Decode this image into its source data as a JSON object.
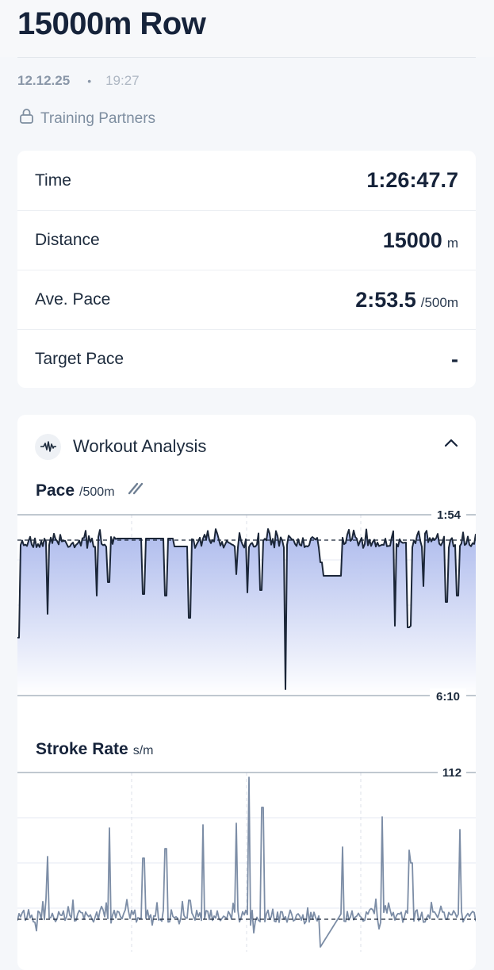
{
  "header": {
    "title": "15000m Row"
  },
  "meta": {
    "date": "12.12.25",
    "separator": "•",
    "time": "19:27"
  },
  "visibility": {
    "label": "Training Partners",
    "icon": "lock-icon"
  },
  "stats": [
    {
      "label": "Time",
      "value": "1:26:47.7",
      "unit": ""
    },
    {
      "label": "Distance",
      "value": "15000",
      "unit": "m"
    },
    {
      "label": "Ave. Pace",
      "value": "2:53.5",
      "unit": "/500m"
    },
    {
      "label": "Target Pace",
      "value": "-",
      "unit": ""
    }
  ],
  "analysis": {
    "title": "Workout Analysis",
    "icon": "waveform-icon",
    "expanded": true
  },
  "chart_data": [
    {
      "type": "area",
      "title": "Pace",
      "unit": "/500m",
      "y_top_label": "1:54",
      "y_bottom_label": "6:10",
      "reference_line": "average pace (dashed)",
      "colors": {
        "line": "#1b2638",
        "fill_top": "#aab8ec",
        "fill_bottom": "#ffffff"
      }
    },
    {
      "type": "line",
      "title": "Stroke Rate",
      "unit": "s/m",
      "y_top_label": "112",
      "reference_line": "average stroke rate (dashed)",
      "colors": {
        "line": "#7c8da6"
      }
    }
  ]
}
